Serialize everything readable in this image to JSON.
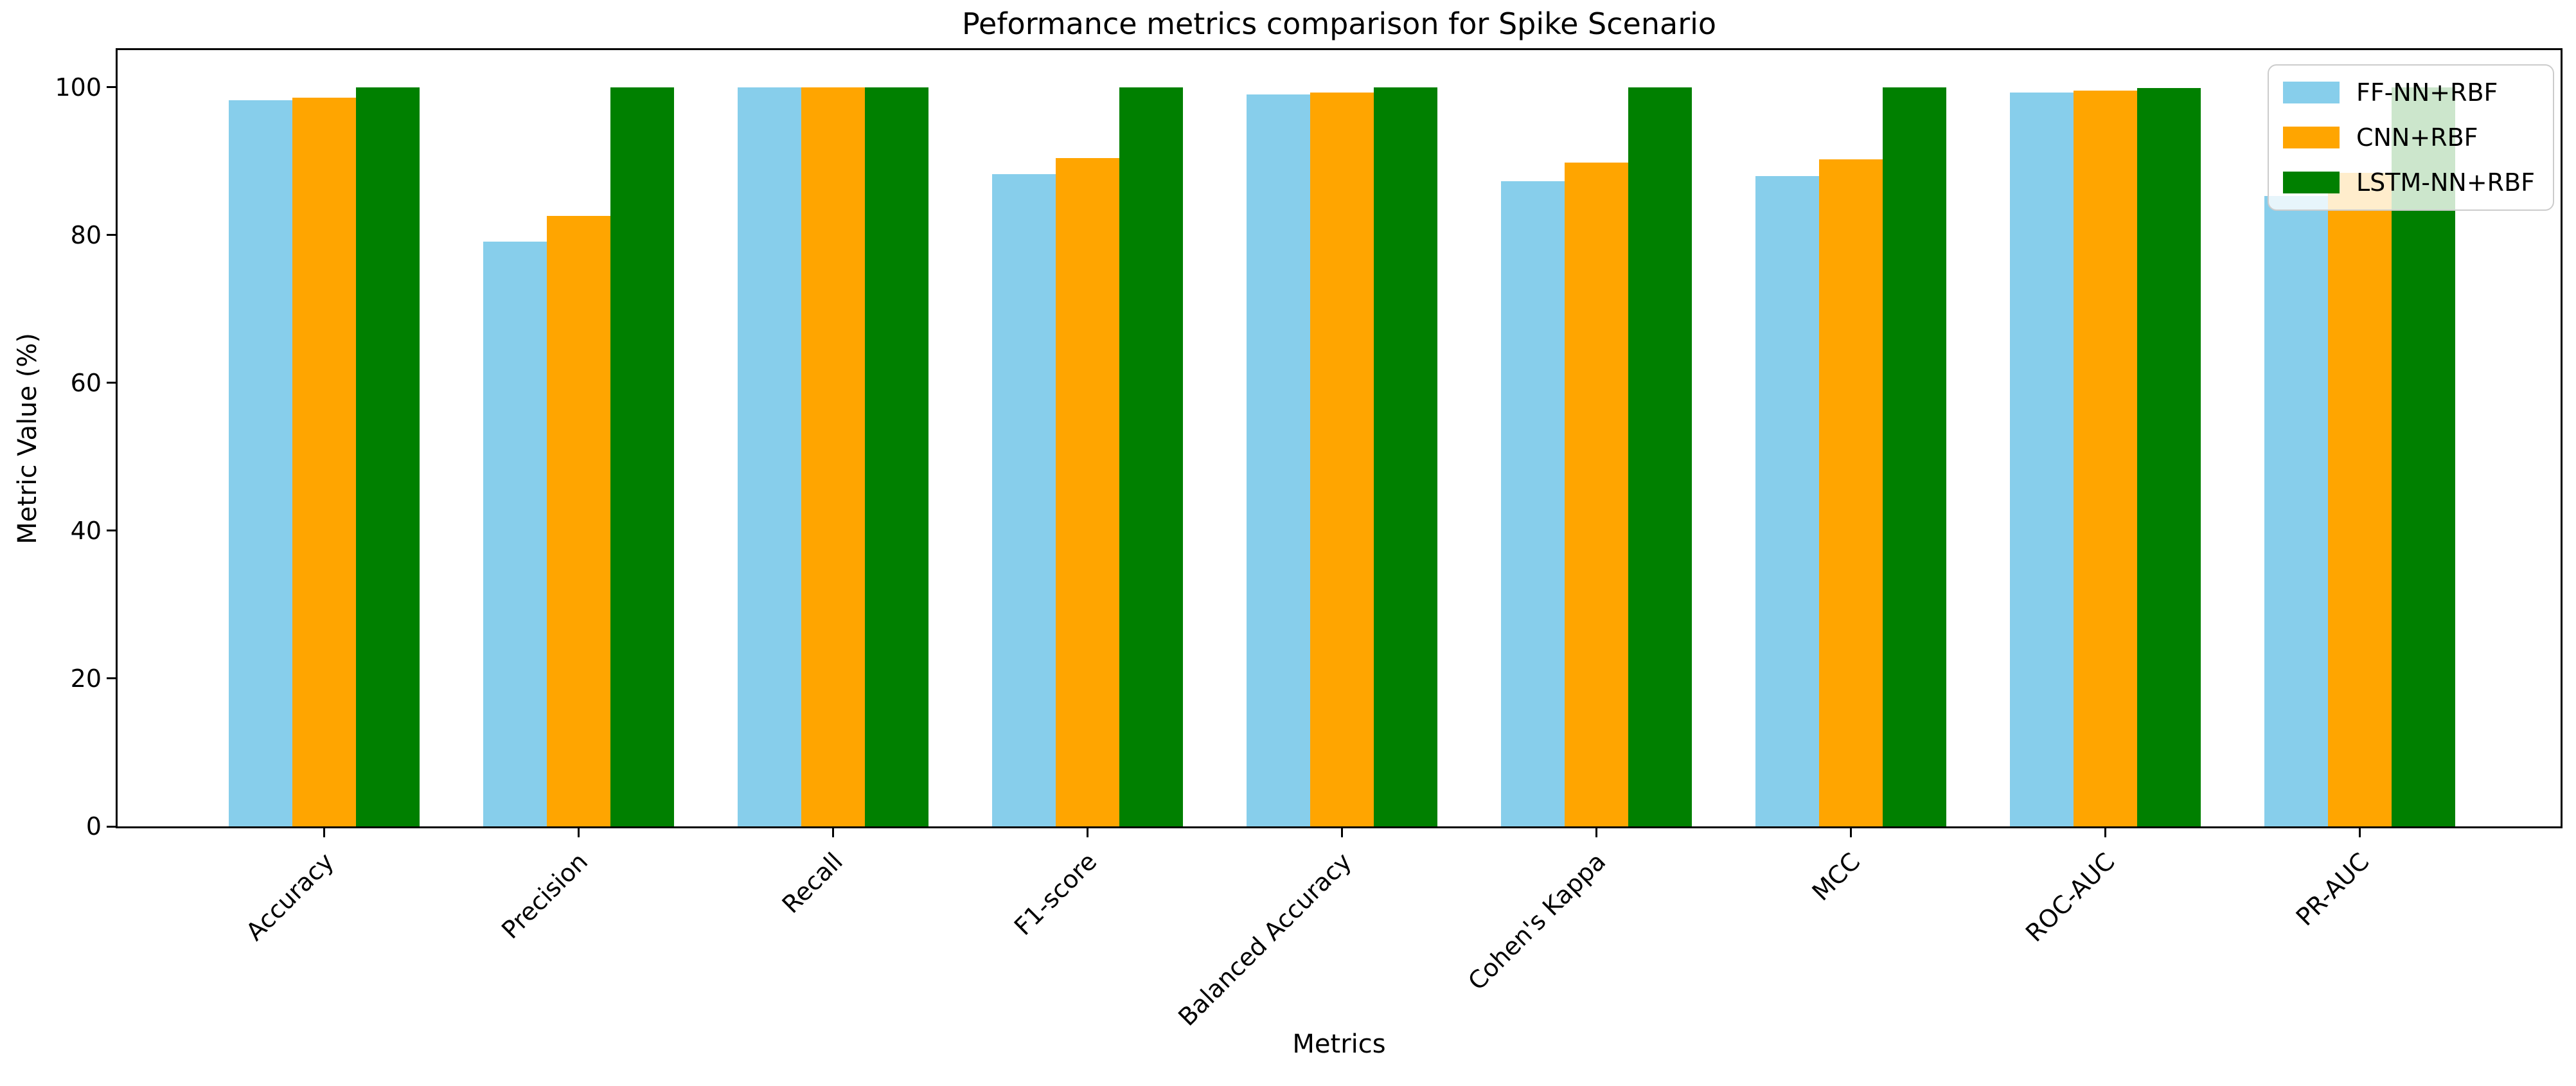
{
  "figure": {
    "title": "Peformance metrics comparison for Spike Scenario"
  },
  "chart_data": {
    "type": "bar",
    "title": "Peformance metrics comparison for Spike Scenario",
    "xlabel": "Metrics",
    "ylabel": "Metric Value (%)",
    "categories": [
      "Accuracy",
      "Precision",
      "Recall",
      "F1-score",
      "Balanced Accuracy",
      "Cohen's Kappa",
      "MCC",
      "ROC-AUC",
      "PR-AUC"
    ],
    "series": [
      {
        "name": "FF-NN+RBF",
        "color": "#87CEEB",
        "values": [
          98.2,
          79.1,
          100.0,
          88.2,
          99.0,
          87.3,
          88.0,
          99.3,
          85.3
        ]
      },
      {
        "name": "CNN+RBF",
        "color": "#FFA500",
        "values": [
          98.6,
          82.6,
          100.0,
          90.4,
          99.3,
          89.8,
          90.2,
          99.5,
          88.4
        ]
      },
      {
        "name": "LSTM-NN+RBF",
        "color": "#008000",
        "values": [
          100.0,
          100.0,
          100.0,
          100.0,
          100.0,
          100.0,
          100.0,
          99.9,
          100.0
        ]
      }
    ],
    "ylim": [
      0,
      105
    ],
    "yticks": [
      0,
      20,
      40,
      60,
      80,
      100
    ],
    "legend_position": "upper right",
    "grid": false
  }
}
